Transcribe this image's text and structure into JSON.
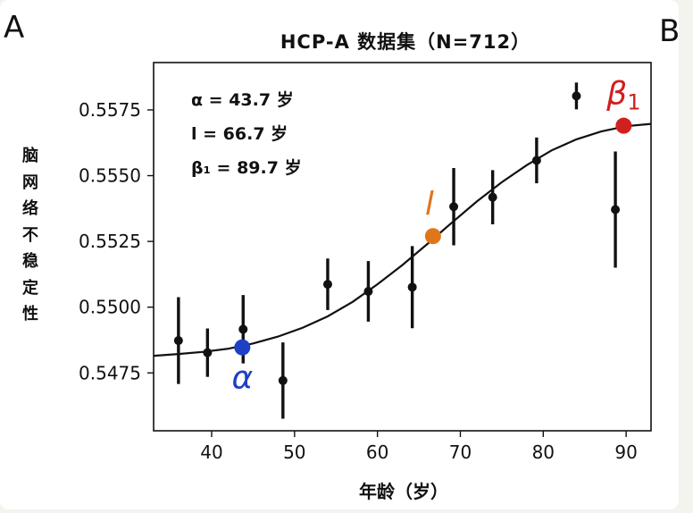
{
  "panels": {
    "left": "A",
    "right": "B"
  },
  "chart_data": {
    "type": "scatter",
    "title": "HCP-A 数据集（N=712）",
    "xlabel": "年龄（岁）",
    "ylabel": "脑网络不稳定性",
    "xlim": [
      33,
      93
    ],
    "ylim": [
      0.5453,
      0.5593
    ],
    "xticks": [
      40,
      50,
      60,
      70,
      80,
      90
    ],
    "yticks": [
      0.5475,
      0.55,
      0.5525,
      0.555,
      0.5575
    ],
    "ytick_labels": [
      "0.5475",
      "0.5500",
      "0.5525",
      "0.5550",
      "0.5575"
    ],
    "points": [
      {
        "x": 36.0,
        "y": 0.54873,
        "err": 0.00165
      },
      {
        "x": 39.5,
        "y": 0.54827,
        "err": 0.00092
      },
      {
        "x": 43.8,
        "y": 0.54916,
        "err": 0.0013
      },
      {
        "x": 48.6,
        "y": 0.54721,
        "err": 0.00145
      },
      {
        "x": 54.0,
        "y": 0.55087,
        "err": 0.00098
      },
      {
        "x": 58.9,
        "y": 0.5506,
        "err": 0.00115
      },
      {
        "x": 64.2,
        "y": 0.55076,
        "err": 0.00156
      },
      {
        "x": 69.2,
        "y": 0.55382,
        "err": 0.00147
      },
      {
        "x": 73.9,
        "y": 0.55418,
        "err": 0.00103
      },
      {
        "x": 79.2,
        "y": 0.55558,
        "err": 0.00087
      },
      {
        "x": 84.0,
        "y": 0.55803,
        "err": 0.00051
      },
      {
        "x": 88.7,
        "y": 0.55371,
        "err": 0.00221
      }
    ],
    "fit": {
      "type": "sigmoid",
      "x": [
        33,
        36,
        39,
        42,
        45,
        48,
        51,
        54,
        57,
        60,
        63,
        66,
        69,
        72,
        75,
        78,
        81,
        84,
        87,
        90,
        93
      ],
      "y": [
        0.54815,
        0.54822,
        0.5483,
        0.54842,
        0.54862,
        0.54888,
        0.54922,
        0.54965,
        0.5502,
        0.55087,
        0.5516,
        0.5524,
        0.55322,
        0.55402,
        0.55475,
        0.5554,
        0.55596,
        0.55638,
        0.55668,
        0.55688,
        0.55697
      ],
      "color": "#111111"
    },
    "markers": [
      {
        "name": "alpha",
        "label": "α",
        "sub": "",
        "x": 43.7,
        "y": 0.54847,
        "color": "#1f3fc4"
      },
      {
        "name": "l",
        "label": "l",
        "sub": "",
        "x": 66.7,
        "y": 0.5527,
        "color": "#e0761c"
      },
      {
        "name": "beta1",
        "label": "β",
        "sub": "1",
        "x": 89.7,
        "y": 0.5569,
        "color": "#d01f1f"
      }
    ],
    "annotations": [
      "α = 43.7 岁",
      "l = 66.7 岁",
      "β₁ = 89.7 岁"
    ],
    "point_color": "#111111"
  }
}
